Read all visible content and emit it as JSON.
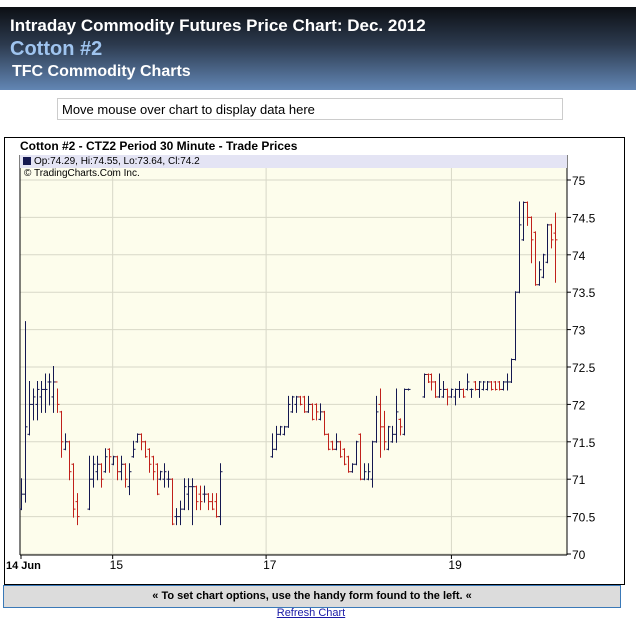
{
  "header": {
    "title": "Intraday Commodity Futures Price Chart: Dec. 2012",
    "commodity": "Cotton #2",
    "site": "TFC Commodity Charts"
  },
  "databox": "Move mouse over chart to display data here",
  "footer": {
    "options": "« To set chart options, use the handy form found to the left. «",
    "refresh": "Refresh Chart"
  },
  "colors": {
    "up": "#141850",
    "down": "#c0201a",
    "plot_bg": "#fdfdec",
    "grid": "#d8d8c8"
  },
  "chart_data": {
    "type": "ohlc",
    "title": "Cotton #2 - CTZ2 Period 30 Minute - Trade Prices",
    "legend": "Op:74.29, Hi:74.55, Lo:73.64, Cl:74.2",
    "copyright": "© TradingCharts.Com Inc.",
    "ylim": [
      70,
      75
    ],
    "xlim": [
      0,
      137
    ],
    "yticks": [
      "70",
      "70.5",
      "71",
      "71.5",
      "72",
      "72.5",
      "73",
      "73.5",
      "74",
      "74.5",
      "75"
    ],
    "xticks": [
      {
        "label": "14 Jun",
        "slot": 0
      },
      {
        "label": "15",
        "slot": 23
      },
      {
        "label": "17",
        "slot": 61.5
      },
      {
        "label": "19",
        "slot": 108
      }
    ],
    "sessions": [
      {
        "start": 0,
        "bars": [
          [
            70.6,
            71.0,
            70.6,
            70.8
          ],
          [
            70.8,
            73.1,
            70.7,
            71.7
          ],
          [
            71.6,
            72.3,
            71.6,
            72.0
          ],
          [
            72.0,
            72.2,
            71.8,
            72.1
          ],
          [
            72.0,
            72.3,
            71.8,
            72.2
          ],
          [
            72.1,
            72.3,
            71.9,
            72.2
          ],
          [
            72.2,
            72.4,
            71.9,
            72.2
          ],
          [
            72.3,
            72.4,
            72.0,
            72.3
          ],
          [
            72.1,
            72.5,
            71.9,
            72.3
          ],
          [
            72.3,
            72.2,
            71.9,
            72.0
          ],
          [
            71.9,
            71.9,
            71.3,
            71.5
          ],
          [
            71.4,
            71.6,
            71.4,
            71.5
          ],
          [
            71.5,
            71.5,
            71.0,
            71.1
          ],
          [
            71.2,
            71.2,
            70.5,
            70.6
          ],
          [
            70.7,
            70.8,
            70.4,
            70.5
          ]
        ]
      },
      {
        "start": 17,
        "bars": [
          [
            70.6,
            71.3,
            70.6,
            71.0
          ],
          [
            71.0,
            71.3,
            70.9,
            71.2
          ],
          [
            71.1,
            71.3,
            71.0,
            71.2
          ],
          [
            71.2,
            71.2,
            70.9,
            71.0
          ],
          [
            71.1,
            71.4,
            71.1,
            71.3
          ],
          [
            71.4,
            71.4,
            71.1,
            71.3
          ],
          [
            71.2,
            71.3,
            71.2,
            71.3
          ],
          [
            71.3,
            71.3,
            71.0,
            71.1
          ],
          [
            71.1,
            71.3,
            71.0,
            71.2
          ],
          [
            71.2,
            71.2,
            70.9,
            71.0
          ],
          [
            70.9,
            71.2,
            70.8,
            71.1
          ],
          [
            71.3,
            71.5,
            71.3,
            71.4
          ],
          [
            71.5,
            71.6,
            71.5,
            71.6
          ],
          [
            71.6,
            71.6,
            71.4,
            71.5
          ],
          [
            71.5,
            71.5,
            71.3,
            71.3
          ],
          [
            71.4,
            71.4,
            71.1,
            71.2
          ],
          [
            71.3,
            71.3,
            71.0,
            71.1
          ],
          [
            71.2,
            71.2,
            70.8,
            70.8
          ],
          [
            71.0,
            71.1,
            71.0,
            71.1
          ],
          [
            71.0,
            71.2,
            70.9,
            71.1
          ],
          [
            71.0,
            71.1,
            70.9,
            71.0
          ],
          [
            71.0,
            71.0,
            70.4,
            70.4
          ],
          [
            70.5,
            70.6,
            70.4,
            70.5
          ],
          [
            70.5,
            70.7,
            70.4,
            70.6
          ],
          [
            70.6,
            71.0,
            70.6,
            70.9
          ],
          [
            70.8,
            71.0,
            70.6,
            70.9
          ],
          [
            70.9,
            71.0,
            70.4,
            70.9
          ],
          [
            70.9,
            70.9,
            70.6,
            70.7
          ],
          [
            70.8,
            70.9,
            70.6,
            70.7
          ],
          [
            70.8,
            70.9,
            70.7,
            70.8
          ],
          [
            70.8,
            70.8,
            70.6,
            70.7
          ],
          [
            70.7,
            70.8,
            70.6,
            70.6
          ],
          [
            70.7,
            70.8,
            70.5,
            70.5
          ],
          [
            70.5,
            71.2,
            70.4,
            71.1
          ]
        ]
      },
      {
        "start": 63,
        "bars": [
          [
            71.3,
            71.6,
            71.3,
            71.4
          ],
          [
            71.4,
            71.7,
            71.4,
            71.6
          ],
          [
            71.6,
            71.7,
            71.6,
            71.7
          ],
          [
            71.6,
            71.7,
            71.6,
            71.7
          ],
          [
            71.7,
            72.1,
            71.7,
            72.0
          ],
          [
            71.9,
            72.1,
            71.9,
            72.1
          ],
          [
            72.0,
            72.1,
            71.9,
            72.1
          ],
          [
            72.1,
            72.1,
            72.0,
            72.0
          ],
          [
            72.1,
            72.1,
            71.9,
            71.9
          ],
          [
            71.9,
            72.1,
            71.9,
            72.0
          ],
          [
            72.0,
            72.0,
            71.8,
            71.8
          ],
          [
            72.0,
            72.0,
            71.8,
            71.9
          ],
          [
            71.8,
            72.0,
            71.8,
            71.9
          ],
          [
            71.9,
            71.9,
            71.6,
            71.6
          ],
          [
            71.6,
            71.6,
            71.4,
            71.4
          ],
          [
            71.5,
            71.5,
            71.4,
            71.4
          ],
          [
            71.4,
            71.6,
            71.4,
            71.5
          ],
          [
            71.5,
            71.5,
            71.3,
            71.3
          ],
          [
            71.4,
            71.4,
            71.2,
            71.2
          ],
          [
            71.3,
            71.3,
            71.1,
            71.1
          ],
          [
            71.1,
            71.2,
            71.1,
            71.2
          ],
          [
            71.2,
            71.5,
            71.2,
            71.5
          ],
          [
            71.6,
            71.6,
            71.0,
            71.0
          ],
          [
            71.0,
            71.2,
            71.0,
            71.1
          ],
          [
            71.0,
            71.2,
            71.0,
            71.1
          ],
          [
            71.0,
            71.5,
            70.9,
            71.5
          ],
          [
            71.5,
            72.1,
            71.5,
            71.9
          ],
          [
            72.0,
            72.2,
            71.3,
            71.7
          ],
          [
            71.7,
            71.9,
            71.4,
            71.5
          ],
          [
            71.4,
            71.7,
            71.4,
            71.7
          ],
          [
            71.5,
            71.7,
            71.5,
            71.6
          ],
          [
            71.6,
            72.2,
            71.5,
            71.9
          ],
          [
            71.8,
            71.8,
            71.6,
            71.7
          ],
          [
            71.6,
            72.2,
            71.6,
            72.2
          ],
          [
            72.2,
            72.2,
            72.2,
            72.2
          ]
        ]
      },
      {
        "start": 101,
        "bars": [
          [
            72.1,
            72.4,
            72.1,
            72.4
          ],
          [
            72.4,
            72.4,
            72.3,
            72.3
          ],
          [
            72.4,
            72.4,
            72.2,
            72.3
          ],
          [
            72.3,
            72.3,
            72.1,
            72.1
          ],
          [
            72.1,
            72.4,
            72.1,
            72.2
          ],
          [
            72.1,
            72.3,
            72.1,
            72.2
          ],
          [
            72.2,
            72.2,
            72.0,
            72.1
          ],
          [
            72.1,
            72.2,
            72.1,
            72.2
          ],
          [
            72.1,
            72.2,
            72.0,
            72.2
          ],
          [
            72.2,
            72.3,
            72.1,
            72.2
          ],
          [
            72.2,
            72.2,
            72.1,
            72.1
          ],
          [
            72.2,
            72.4,
            72.2,
            72.3
          ],
          [
            72.2,
            72.2,
            72.1,
            72.2
          ],
          [
            72.3,
            72.3,
            72.2,
            72.2
          ],
          [
            72.2,
            72.3,
            72.1,
            72.3
          ],
          [
            72.2,
            72.3,
            72.2,
            72.3
          ],
          [
            72.2,
            72.3,
            72.2,
            72.3
          ],
          [
            72.3,
            72.3,
            72.2,
            72.2
          ],
          [
            72.3,
            72.3,
            72.2,
            72.2
          ],
          [
            72.3,
            72.3,
            72.2,
            72.2
          ],
          [
            72.2,
            72.3,
            72.2,
            72.3
          ],
          [
            72.3,
            72.4,
            72.2,
            72.3
          ],
          [
            72.3,
            72.6,
            72.3,
            72.6
          ],
          [
            72.6,
            73.5,
            72.6,
            73.5
          ],
          [
            73.5,
            74.7,
            73.5,
            74.4
          ],
          [
            74.2,
            74.7,
            74.2,
            74.7
          ],
          [
            74.7,
            74.7,
            74.4,
            74.5
          ],
          [
            74.5,
            74.5,
            73.9,
            74.2
          ],
          [
            74.3,
            74.3,
            73.6,
            73.6
          ],
          [
            73.6,
            73.9,
            73.6,
            73.8
          ],
          [
            73.7,
            74.0,
            73.7,
            74.0
          ],
          [
            73.9,
            74.4,
            73.9,
            74.4
          ],
          [
            74.4,
            74.4,
            74.1,
            74.2
          ],
          [
            74.29,
            74.55,
            73.64,
            74.2
          ]
        ]
      }
    ]
  }
}
